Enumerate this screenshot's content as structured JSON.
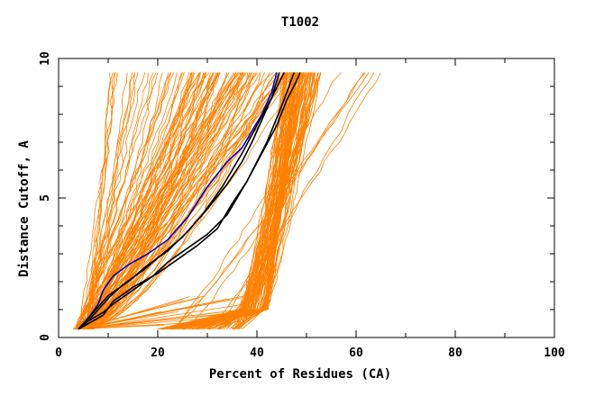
{
  "chart_data": {
    "type": "line",
    "title": "T1002",
    "xlabel": "Percent of Residues (CA)",
    "ylabel": "Distance Cutoff, A",
    "xlim": [
      0,
      100
    ],
    "ylim": [
      0,
      10
    ],
    "xticks": [
      "0",
      "20",
      "40",
      "60",
      "80",
      "100"
    ],
    "yticks": [
      "0",
      "5",
      "10"
    ],
    "grid": false,
    "colors": {
      "background_models": "#ff8000",
      "highlight_black": "#000000",
      "highlight_blue": "#0000cc"
    },
    "series": [
      {
        "color": "blue",
        "x": [
          4,
          6,
          8,
          9,
          11,
          14,
          18,
          22,
          26,
          30,
          34,
          37,
          39,
          41,
          43,
          44
        ],
        "y": [
          0.3,
          0.7,
          1.2,
          1.7,
          2.2,
          2.6,
          3.0,
          3.5,
          4.3,
          5.4,
          6.3,
          6.8,
          7.4,
          8.0,
          8.8,
          9.5
        ]
      },
      {
        "color": "black",
        "x": [
          4,
          6,
          8,
          10,
          14,
          18,
          22,
          26,
          30,
          34,
          37,
          39,
          41,
          43,
          44.5
        ],
        "y": [
          0.3,
          0.7,
          1.1,
          1.5,
          2.0,
          2.6,
          3.1,
          3.8,
          4.6,
          5.5,
          6.3,
          7.0,
          7.8,
          8.6,
          9.5
        ]
      },
      {
        "color": "black",
        "x": [
          4,
          6,
          8,
          10,
          13,
          17,
          21,
          25,
          29,
          33,
          37,
          40,
          43,
          45.5
        ],
        "y": [
          0.3,
          0.6,
          1.0,
          1.4,
          1.9,
          2.4,
          3.0,
          3.6,
          4.4,
          5.4,
          6.6,
          7.6,
          8.6,
          9.5
        ]
      },
      {
        "color": "black",
        "x": [
          4,
          6,
          9,
          11,
          15,
          19,
          22,
          26,
          30,
          34,
          38,
          42,
          45,
          47.5
        ],
        "y": [
          0.3,
          0.6,
          0.9,
          1.2,
          1.7,
          2.2,
          2.7,
          3.2,
          3.7,
          4.4,
          5.6,
          7.0,
          8.3,
          9.5
        ]
      },
      {
        "color": "black",
        "x": [
          4,
          6,
          9,
          11,
          15,
          20,
          24,
          28,
          32,
          35,
          38,
          41,
          44,
          46,
          48,
          48.7
        ],
        "y": [
          0.3,
          0.5,
          0.8,
          1.3,
          1.8,
          2.3,
          2.8,
          3.3,
          3.9,
          4.8,
          5.6,
          6.6,
          7.6,
          8.5,
          9.2,
          9.5
        ]
      }
    ]
  }
}
